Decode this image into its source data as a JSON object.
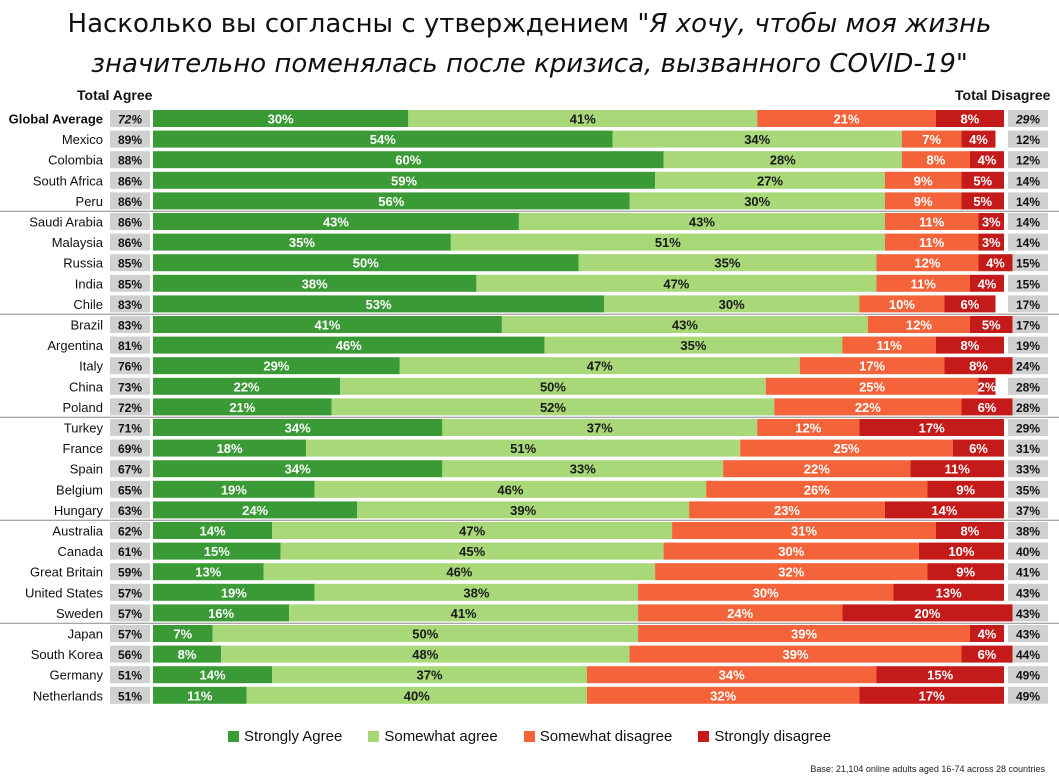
{
  "title": {
    "prefix": "Насколько вы согласны с утверждением \"",
    "quote_line1": "Я хочу, чтобы моя жизнь",
    "quote_line2": "значительно поменялась после кризиса, вызванного COVID-19",
    "suffix": "\""
  },
  "headers": {
    "left": "Total Agree",
    "right": "Total Disagree"
  },
  "base_note": "Base: 21,104 online adults aged 16-74 across 28 countries",
  "colors": {
    "strongly_agree": "#3a9a35",
    "somewhat_agree": "#a8d878",
    "somewhat_disagree": "#f4633a",
    "strongly_disagree": "#c41a1a",
    "total_box": "#d0d0d0"
  },
  "chart_data": {
    "type": "bar",
    "orientation": "horizontal",
    "stacked": true,
    "categories": [
      "Global Average",
      "Mexico",
      "Colombia",
      "South Africa",
      "Peru",
      "Saudi Arabia",
      "Malaysia",
      "Russia",
      "India",
      "Chile",
      "Brazil",
      "Argentina",
      "Italy",
      "China",
      "Poland",
      "Turkey",
      "France",
      "Spain",
      "Belgium",
      "Hungary",
      "Australia",
      "Canada",
      "Great Britain",
      "United States",
      "Sweden",
      "Japan",
      "South Korea",
      "Germany",
      "Netherlands"
    ],
    "series": [
      {
        "name": "Strongly Agree",
        "values": [
          30,
          54,
          60,
          59,
          56,
          43,
          35,
          50,
          38,
          53,
          41,
          46,
          29,
          22,
          21,
          34,
          18,
          34,
          19,
          24,
          14,
          15,
          13,
          19,
          16,
          7,
          8,
          14,
          11
        ]
      },
      {
        "name": "Somewhat agree",
        "values": [
          41,
          34,
          28,
          27,
          30,
          43,
          51,
          35,
          47,
          30,
          43,
          35,
          47,
          50,
          52,
          37,
          51,
          33,
          46,
          39,
          47,
          45,
          46,
          38,
          41,
          50,
          48,
          37,
          40
        ]
      },
      {
        "name": "Somewhat disagree",
        "values": [
          21,
          7,
          8,
          9,
          9,
          11,
          11,
          12,
          11,
          10,
          12,
          11,
          17,
          25,
          22,
          12,
          25,
          22,
          26,
          23,
          31,
          30,
          32,
          30,
          24,
          39,
          39,
          34,
          32
        ]
      },
      {
        "name": "Strongly disagree",
        "values": [
          8,
          4,
          4,
          5,
          5,
          3,
          3,
          4,
          4,
          6,
          5,
          8,
          8,
          2,
          6,
          17,
          6,
          11,
          9,
          14,
          8,
          10,
          9,
          13,
          20,
          4,
          6,
          15,
          17
        ]
      }
    ],
    "total_agree": [
      "72%",
      "89%",
      "88%",
      "86%",
      "86%",
      "86%",
      "86%",
      "85%",
      "85%",
      "83%",
      "83%",
      "81%",
      "76%",
      "73%",
      "72%",
      "71%",
      "69%",
      "67%",
      "65%",
      "63%",
      "62%",
      "61%",
      "59%",
      "57%",
      "57%",
      "57%",
      "56%",
      "51%",
      "51%"
    ],
    "total_disagree": [
      "29%",
      "12%",
      "12%",
      "14%",
      "14%",
      "14%",
      "14%",
      "15%",
      "15%",
      "17%",
      "17%",
      "19%",
      "24%",
      "28%",
      "28%",
      "29%",
      "31%",
      "33%",
      "35%",
      "37%",
      "38%",
      "40%",
      "41%",
      "43%",
      "43%",
      "43%",
      "44%",
      "49%",
      "49%"
    ],
    "group_separators_after": [
      4,
      9,
      14,
      19,
      24
    ],
    "xlim": [
      0,
      100
    ],
    "legend_position": "bottom"
  }
}
